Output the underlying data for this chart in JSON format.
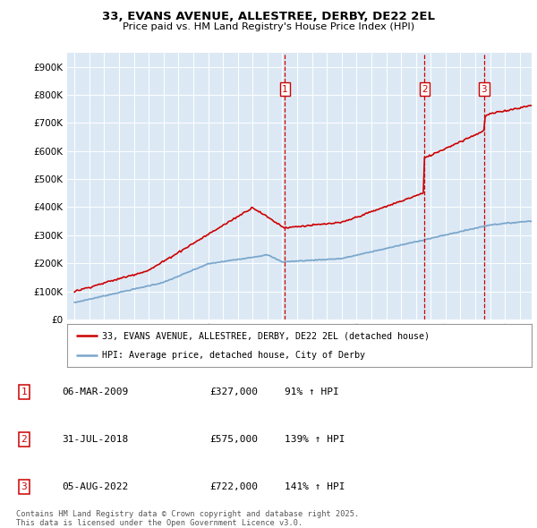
{
  "title": "33, EVANS AVENUE, ALLESTREE, DERBY, DE22 2EL",
  "subtitle": "Price paid vs. HM Land Registry's House Price Index (HPI)",
  "hpi_label": "HPI: Average price, detached house, City of Derby",
  "price_label": "33, EVANS AVENUE, ALLESTREE, DERBY, DE22 2EL (detached house)",
  "transactions": [
    {
      "num": 1,
      "date": "06-MAR-2009",
      "price": 327000,
      "hpi_pct": "91% ↑ HPI",
      "year": 2009.18
    },
    {
      "num": 2,
      "date": "31-JUL-2018",
      "price": 575000,
      "hpi_pct": "139% ↑ HPI",
      "year": 2018.58
    },
    {
      "num": 3,
      "date": "05-AUG-2022",
      "price": 722000,
      "hpi_pct": "141% ↑ HPI",
      "year": 2022.6
    }
  ],
  "ylim": [
    0,
    950000
  ],
  "xlim_start": 1994.5,
  "xlim_end": 2025.8,
  "bg_color": "#dce9f5",
  "red_color": "#cc0000",
  "blue_color": "#7ba7cc",
  "footer": "Contains HM Land Registry data © Crown copyright and database right 2025.\nThis data is licensed under the Open Government Licence v3.0."
}
